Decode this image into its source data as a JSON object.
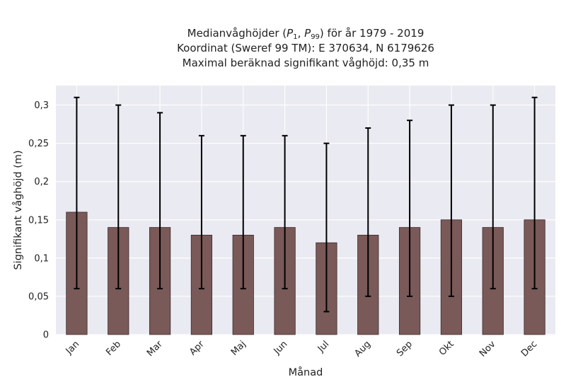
{
  "chart_data": {
    "type": "bar",
    "title_lines": [
      "Medianvåghöjder (P1, P99) för år 1979 - 2019",
      "Koordinat (Sweref 99 TM): E 370634, N 6179626",
      "Maximal beräknad signifikant våghöjd: 0,35 m"
    ],
    "xlabel": "Månad",
    "ylabel": "Signifikant våghöjd (m)",
    "categories": [
      "Jan",
      "Feb",
      "Mar",
      "Apr",
      "Maj",
      "Jun",
      "Jul",
      "Aug",
      "Sep",
      "Okt",
      "Nov",
      "Dec"
    ],
    "values": [
      0.16,
      0.14,
      0.14,
      0.13,
      0.13,
      0.14,
      0.12,
      0.13,
      0.14,
      0.15,
      0.14,
      0.15
    ],
    "p1": [
      0.06,
      0.06,
      0.06,
      0.06,
      0.06,
      0.06,
      0.03,
      0.05,
      0.05,
      0.05,
      0.06,
      0.06
    ],
    "p99": [
      0.31,
      0.3,
      0.29,
      0.26,
      0.26,
      0.26,
      0.25,
      0.27,
      0.28,
      0.3,
      0.3,
      0.31
    ],
    "yticks": [
      0,
      0.05,
      0.1,
      0.15,
      0.2,
      0.25,
      0.3
    ],
    "ytick_labels": [
      "0",
      "0,05",
      "0,1",
      "0,15",
      "0,2",
      "0,25",
      "0,3"
    ],
    "ylim": [
      0,
      0.3255
    ],
    "grid": true,
    "colors": {
      "bar": "#7a5959",
      "bar_edge": "#3a2a2a",
      "error_bar": "#000000",
      "plot_background": "#eaeaf2",
      "grid": "#ffffff"
    }
  }
}
